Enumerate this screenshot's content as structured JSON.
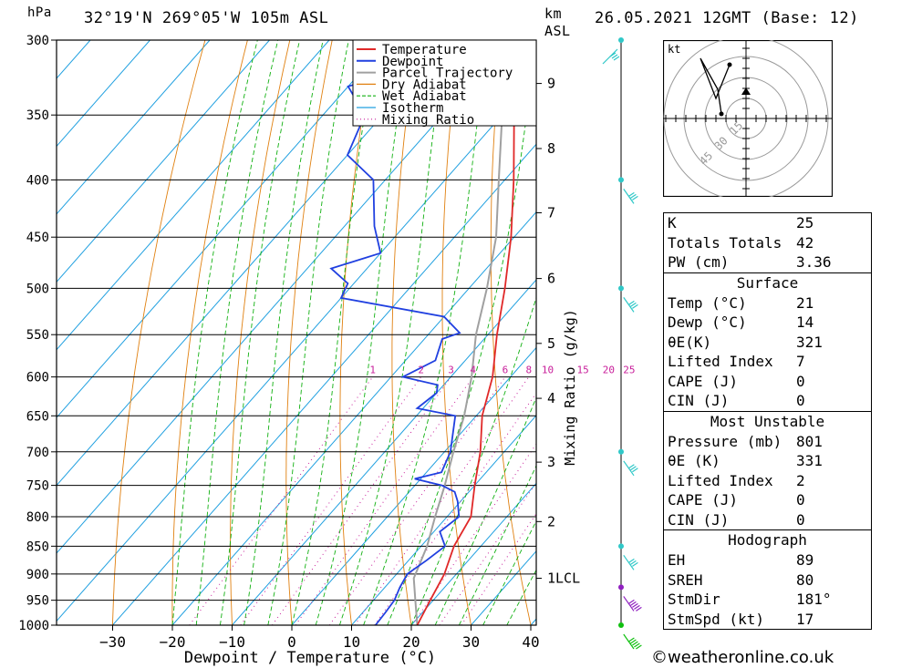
{
  "header": {
    "location": "32°19'N  269°05'W  105m  ASL",
    "datetime": "26.05.2021  12GMT  (Base: 12)",
    "pressure_unit": "hPa",
    "height_unit_1": "km",
    "height_unit_2": "ASL"
  },
  "footer": {
    "credit": "©weatheronline.co.uk"
  },
  "colors": {
    "temperature": "#e02828",
    "dewpoint": "#2040e0",
    "parcel": "#a0a0a0",
    "dry_adiabat": "#e08010",
    "wet_adiabat": "#10b010",
    "isotherm": "#20a0e0",
    "mixing_ratio": "#c81e9a",
    "wind": "#30c8c8"
  },
  "chart_data": {
    "type": "line",
    "title": "",
    "xlabel": "Dewpoint / Temperature (°C)",
    "ylabel": "hPa",
    "y2label": "Mixing Ratio (g/kg)",
    "xlim": [
      -40,
      40
    ],
    "ylim": [
      1000,
      300
    ],
    "y_scale": "log",
    "x_ticks": [
      -30,
      -20,
      -10,
      0,
      10,
      20,
      30,
      40
    ],
    "pressure_levels": [
      300,
      350,
      400,
      450,
      500,
      550,
      600,
      650,
      700,
      750,
      800,
      850,
      900,
      950,
      1000
    ],
    "height_km": [
      {
        "label": "9",
        "p": 328
      },
      {
        "label": "8",
        "p": 375
      },
      {
        "label": "7",
        "p": 428
      },
      {
        "label": "6",
        "p": 490
      },
      {
        "label": "5",
        "p": 560
      },
      {
        "label": "4",
        "p": 627
      },
      {
        "label": "3",
        "p": 715
      },
      {
        "label": "2",
        "p": 808
      },
      {
        "label": "1LCL",
        "p": 908
      }
    ],
    "mixing_ratio_labels": [
      "1",
      "2",
      "3",
      "4",
      "6",
      "8",
      "10",
      "15",
      "20",
      "25"
    ],
    "legend": [
      "Temperature",
      "Dewpoint",
      "Parcel Trajectory",
      "Dry Adiabat",
      "Wet Adiabat",
      "Isotherm",
      "Mixing Ratio"
    ],
    "legend_position": "top-right",
    "grid": true,
    "series": [
      {
        "name": "Temperature",
        "points": [
          [
            1000,
            21
          ],
          [
            950,
            19.5
          ],
          [
            900,
            18
          ],
          [
            850,
            15.5
          ],
          [
            800,
            14
          ],
          [
            750,
            10
          ],
          [
            700,
            6
          ],
          [
            650,
            1
          ],
          [
            600,
            -3
          ],
          [
            550,
            -8.5
          ],
          [
            500,
            -14
          ],
          [
            450,
            -20.5
          ],
          [
            400,
            -28.5
          ],
          [
            350,
            -38
          ],
          [
            300,
            -46
          ]
        ]
      },
      {
        "name": "Dewpoint",
        "points": [
          [
            1000,
            14
          ],
          [
            975,
            13.8
          ],
          [
            950,
            13.5
          ],
          [
            925,
            12.5
          ],
          [
            900,
            11.8
          ],
          [
            875,
            13
          ],
          [
            850,
            14
          ],
          [
            825,
            11
          ],
          [
            800,
            12
          ],
          [
            775,
            9.5
          ],
          [
            760,
            7.6
          ],
          [
            750,
            4.5
          ],
          [
            740,
            -1
          ],
          [
            730,
            2.5
          ],
          [
            700,
            1
          ],
          [
            650,
            -3.5
          ],
          [
            640,
            -11
          ],
          [
            620,
            -10
          ],
          [
            610,
            -11
          ],
          [
            600,
            -18
          ],
          [
            580,
            -15
          ],
          [
            555,
            -17
          ],
          [
            548,
            -15
          ],
          [
            530,
            -20
          ],
          [
            510,
            -40
          ],
          [
            495,
            -41
          ],
          [
            480,
            -46
          ],
          [
            470,
            -42
          ],
          [
            465,
            -40
          ],
          [
            440,
            -45
          ],
          [
            400,
            -52
          ],
          [
            380,
            -60
          ],
          [
            350,
            -63
          ],
          [
            330,
            -70
          ],
          [
            322,
            -65
          ],
          [
            315,
            -60
          ],
          [
            300,
            -61
          ]
        ]
      },
      {
        "name": "Parcel Trajectory",
        "points": [
          [
            1000,
            21
          ],
          [
            950,
            17
          ],
          [
            908,
            13.5
          ],
          [
            850,
            11
          ],
          [
            800,
            8
          ],
          [
            750,
            5
          ],
          [
            700,
            1.5
          ],
          [
            650,
            -2
          ],
          [
            600,
            -6.5
          ],
          [
            550,
            -12
          ],
          [
            500,
            -17
          ],
          [
            450,
            -23
          ],
          [
            400,
            -31
          ],
          [
            350,
            -40
          ],
          [
            300,
            -51
          ]
        ]
      }
    ],
    "hodograph": {
      "unit": "kt",
      "ring_labels": [
        "15",
        "30",
        "45"
      ]
    }
  },
  "wind_barbs": [
    {
      "p": 300,
      "label": "barb"
    },
    {
      "p": 400,
      "label": "barb"
    },
    {
      "p": 500,
      "label": "barb"
    },
    {
      "p": 700,
      "label": "barb"
    },
    {
      "p": 850,
      "label": "barb"
    },
    {
      "p": 925,
      "label": "barb"
    },
    {
      "p": 1000,
      "label": "barb"
    }
  ],
  "indices": {
    "top": [
      {
        "k": "K",
        "v": "25"
      },
      {
        "k": "Totals Totals",
        "v": "42"
      },
      {
        "k": "PW (cm)",
        "v": "3.36"
      }
    ],
    "surface_title": "Surface",
    "surface": [
      {
        "k": "Temp (°C)",
        "v": "21"
      },
      {
        "k": "Dewp (°C)",
        "v": "14"
      },
      {
        "k": "θE(K)",
        "v": "321"
      },
      {
        "k": "Lifted Index",
        "v": "7"
      },
      {
        "k": "CAPE (J)",
        "v": "0"
      },
      {
        "k": "CIN (J)",
        "v": "0"
      }
    ],
    "mu_title": "Most Unstable",
    "mu": [
      {
        "k": "Pressure (mb)",
        "v": "801"
      },
      {
        "k": "θE (K)",
        "v": "331"
      },
      {
        "k": "Lifted Index",
        "v": "2"
      },
      {
        "k": "CAPE (J)",
        "v": "0"
      },
      {
        "k": "CIN (J)",
        "v": "0"
      }
    ],
    "hodo_title": "Hodograph",
    "hodo": [
      {
        "k": "EH",
        "v": "89"
      },
      {
        "k": "SREH",
        "v": "80"
      },
      {
        "k": "StmDir",
        "v": "181°"
      },
      {
        "k": "StmSpd (kt)",
        "v": "17"
      }
    ]
  }
}
